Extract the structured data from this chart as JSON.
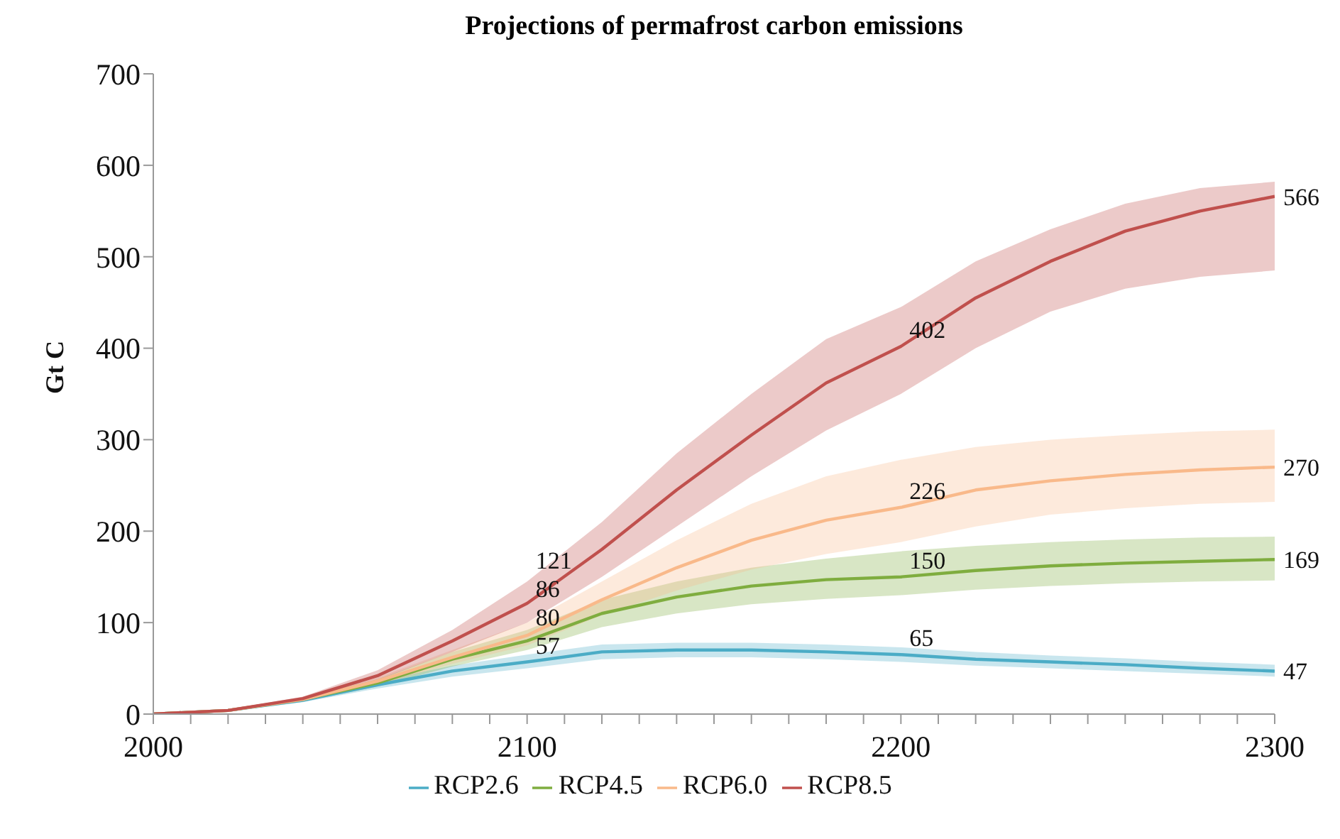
{
  "chart_data": {
    "type": "line",
    "title": "Projections of permafrost carbon emissions",
    "ylabel": "Gt C",
    "x": [
      2000,
      2020,
      2040,
      2060,
      2080,
      2100,
      2120,
      2140,
      2160,
      2180,
      2200,
      2220,
      2240,
      2260,
      2280,
      2300
    ],
    "series": [
      {
        "name": "RCP2.6",
        "color": "#4bacc6",
        "values": [
          0,
          4,
          15,
          32,
          47,
          57,
          68,
          70,
          70,
          68,
          65,
          60,
          57,
          54,
          50,
          47
        ],
        "upper": [
          0,
          5,
          17,
          36,
          53,
          65,
          76,
          78,
          78,
          76,
          73,
          68,
          64,
          61,
          57,
          54
        ],
        "lower": [
          0,
          3,
          13,
          28,
          41,
          50,
          60,
          62,
          62,
          60,
          57,
          53,
          50,
          47,
          44,
          41
        ],
        "value_labels": [
          null,
          null,
          null,
          null,
          null,
          "57",
          null,
          null,
          null,
          null,
          "65",
          null,
          null,
          null,
          null,
          "47"
        ]
      },
      {
        "name": "RCP4.5",
        "color": "#7fad3f",
        "values": [
          0,
          4,
          16,
          34,
          60,
          80,
          110,
          128,
          140,
          147,
          150,
          157,
          162,
          165,
          167,
          169
        ],
        "upper": [
          0,
          5,
          18,
          38,
          68,
          92,
          125,
          145,
          160,
          170,
          178,
          184,
          188,
          191,
          193,
          194
        ],
        "lower": [
          0,
          3,
          14,
          30,
          52,
          70,
          95,
          110,
          120,
          126,
          130,
          136,
          140,
          143,
          145,
          146
        ],
        "value_labels": [
          null,
          null,
          null,
          null,
          null,
          "80",
          null,
          null,
          null,
          null,
          "150",
          null,
          null,
          null,
          null,
          "169"
        ]
      },
      {
        "name": "RCP6.0",
        "color": "#f9b98a",
        "values": [
          0,
          4,
          16,
          36,
          62,
          86,
          125,
          160,
          190,
          212,
          226,
          245,
          255,
          262,
          267,
          270
        ],
        "upper": [
          0,
          5,
          18,
          40,
          70,
          100,
          145,
          190,
          230,
          260,
          278,
          292,
          300,
          305,
          309,
          311
        ],
        "lower": [
          0,
          3,
          14,
          32,
          55,
          75,
          108,
          135,
          158,
          175,
          188,
          205,
          218,
          225,
          230,
          232
        ],
        "value_labels": [
          null,
          null,
          null,
          null,
          null,
          "86",
          null,
          null,
          null,
          null,
          "226",
          null,
          null,
          null,
          null,
          "270"
        ]
      },
      {
        "name": "RCP8.5",
        "color": "#c0504d",
        "values": [
          0,
          4,
          17,
          42,
          80,
          121,
          180,
          245,
          305,
          362,
          402,
          455,
          495,
          528,
          550,
          566
        ],
        "upper": [
          0,
          5,
          19,
          48,
          92,
          145,
          210,
          285,
          350,
          410,
          445,
          495,
          530,
          558,
          575,
          582
        ],
        "lower": [
          0,
          3,
          15,
          37,
          68,
          100,
          150,
          205,
          260,
          310,
          350,
          400,
          440,
          465,
          478,
          485
        ],
        "value_labels": [
          null,
          null,
          null,
          null,
          null,
          "121",
          null,
          null,
          null,
          null,
          "402",
          null,
          null,
          null,
          null,
          "566"
        ]
      }
    ],
    "xlim": [
      2000,
      2300
    ],
    "xticks": [
      2000,
      {
        "value": 2010,
        "label": null
      },
      {
        "value": 2020,
        "label": null
      },
      {
        "value": 2030,
        "label": null
      },
      {
        "value": 2040,
        "label": null
      },
      {
        "value": 2050,
        "label": null
      },
      {
        "value": 2060,
        "label": null
      },
      {
        "value": 2070,
        "label": null
      },
      {
        "value": 2080,
        "label": null
      },
      {
        "value": 2090,
        "label": null
      },
      2100,
      {
        "value": 2110,
        "label": null
      },
      {
        "value": 2120,
        "label": null
      },
      {
        "value": 2130,
        "label": null
      },
      {
        "value": 2140,
        "label": null
      },
      {
        "value": 2150,
        "label": null
      },
      {
        "value": 2160,
        "label": null
      },
      {
        "value": 2170,
        "label": null
      },
      {
        "value": 2180,
        "label": null
      },
      {
        "value": 2190,
        "label": null
      },
      2200,
      {
        "value": 2210,
        "label": null
      },
      {
        "value": 2220,
        "label": null
      },
      {
        "value": 2230,
        "label": null
      },
      {
        "value": 2240,
        "label": null
      },
      {
        "value": 2250,
        "label": null
      },
      {
        "value": 2260,
        "label": null
      },
      {
        "value": 2270,
        "label": null
      },
      {
        "value": 2280,
        "label": null
      },
      {
        "value": 2290,
        "label": null
      },
      2300
    ],
    "ylim": [
      0,
      700
    ],
    "yticks": [
      0,
      100,
      200,
      300,
      400,
      500,
      600,
      700
    ],
    "grid": false,
    "legend": "bottom",
    "marker": "none",
    "line_style": "solid"
  }
}
